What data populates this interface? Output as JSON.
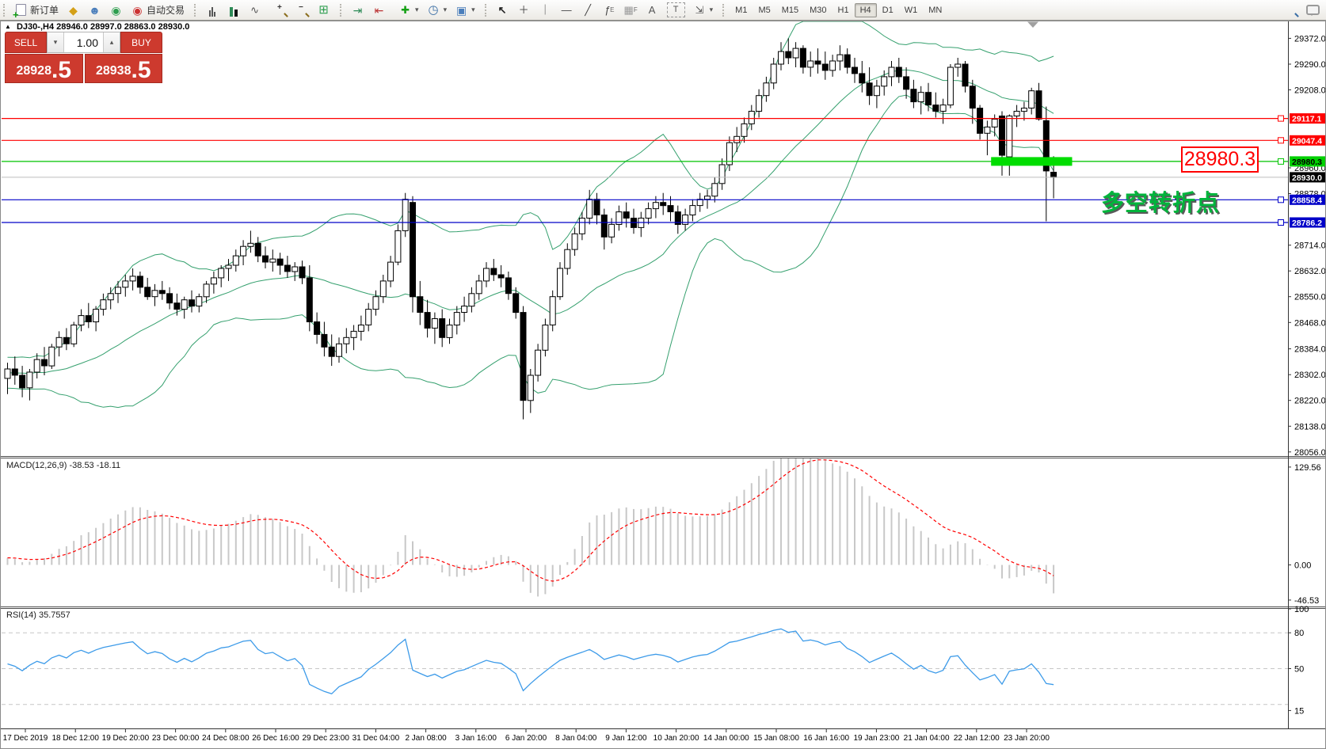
{
  "toolbar": {
    "new_order": {
      "label": "新订单"
    },
    "autotrading": {
      "label": "自动交易"
    },
    "timeframes": [
      "M1",
      "M5",
      "M15",
      "M30",
      "H1",
      "H4",
      "D1",
      "W1",
      "MN"
    ],
    "active_timeframe": "H4",
    "glyphs": {
      "person": "☻",
      "diamond": "◆",
      "signal": "◉",
      "auto": "◉",
      "line_chart": "∿",
      "tile": "⊞",
      "indicator": "✚",
      "clock": "◷",
      "template": "▣",
      "autoscroll": "⇥",
      "shift": "⇤",
      "cursor": "↖",
      "crosshair": "＋",
      "vline": "｜",
      "hline": "—",
      "tline": "╱",
      "fibo": "ƒ",
      "fibo_sub": "E",
      "channel": "▦",
      "channel_sub": "F",
      "text": "A",
      "textlabel": "T",
      "arrows": "⇲",
      "caret": "▾",
      "zoom_in": "+",
      "zoom_out": "−"
    }
  },
  "symbol_bar": {
    "collapse_icon": "▲",
    "symbol": "DJ30-,H4",
    "open": "28946.0",
    "high": "28997.0",
    "low": "28863.0",
    "close": "28930.0"
  },
  "trade_panel": {
    "sell_label": "SELL",
    "buy_label": "BUY",
    "volume": "1.00",
    "spinner_down": "▾",
    "spinner_up": "▴",
    "sell_price_main": "28928",
    "sell_price_frac": ".5",
    "buy_price_main": "28938",
    "buy_price_frac": ".5"
  },
  "chart_data": [
    {
      "type": "candlestick",
      "title": "DJ30-,H4",
      "timeframe": "H4",
      "ohlc_current": {
        "open": 28946.0,
        "high": 28997.0,
        "low": 28863.0,
        "close": 28930.0
      },
      "ylim": [
        28043,
        29426
      ],
      "y_ticks": [
        "29372.0",
        "29290.0",
        "29208.0",
        "28960.0",
        "28878.0",
        "28714.0",
        "28632.0",
        "28550.0",
        "28468.0",
        "28384.0",
        "28302.0",
        "28220.0",
        "28138.0",
        "28056.0"
      ],
      "bollinger": {
        "period": 20,
        "deviation": 2,
        "color": "#35a06e"
      },
      "candle_up_fill": "#ffffff",
      "candle_down_fill": "#000000",
      "candle_stroke": "#000000",
      "levels": [
        {
          "price": 29117.1,
          "label": "29117.1",
          "color": "#ff0000",
          "badge_bg": "#ff0000",
          "badge_fg": "#ffffff"
        },
        {
          "price": 29047.4,
          "label": "29047.4",
          "color": "#ff0000",
          "badge_bg": "#ff0000",
          "badge_fg": "#ffffff"
        },
        {
          "price": 28980.3,
          "label": "28980.3",
          "color": "#00c400",
          "badge_bg": "#00d000",
          "badge_fg": "#000000"
        },
        {
          "price": 28858.4,
          "label": "28858.4",
          "color": "#0000c8",
          "badge_bg": "#0000c8",
          "badge_fg": "#ffffff"
        },
        {
          "price": 28786.2,
          "label": "28786.2",
          "color": "#0000c8",
          "badge_bg": "#0000c8",
          "badge_fg": "#ffffff"
        }
      ],
      "current_price": {
        "price": 28930.0,
        "label": "28930.0",
        "line_color": "#bdbdbd",
        "badge_bg": "#000000",
        "badge_fg": "#ffffff"
      },
      "highlight_zone": {
        "price": 28980.3,
        "from_candle": 134,
        "span_candles": 11,
        "color": "#00dd00"
      },
      "big_price_label": {
        "text": "28980.3",
        "color": "#ff0000"
      },
      "annotation": {
        "text": "多空转折点",
        "color": "#00b43c"
      },
      "candles": [
        [
          28290,
          28340,
          28240,
          28320
        ],
        [
          28320,
          28360,
          28270,
          28300
        ],
        [
          28300,
          28330,
          28230,
          28260
        ],
        [
          28260,
          28320,
          28220,
          28310
        ],
        [
          28310,
          28370,
          28290,
          28350
        ],
        [
          28350,
          28390,
          28300,
          28330
        ],
        [
          28330,
          28400,
          28320,
          28390
        ],
        [
          28390,
          28440,
          28360,
          28420
        ],
        [
          28420,
          28450,
          28380,
          28400
        ],
        [
          28400,
          28470,
          28390,
          28460
        ],
        [
          28460,
          28510,
          28440,
          28490
        ],
        [
          28490,
          28530,
          28450,
          28470
        ],
        [
          28470,
          28520,
          28440,
          28510
        ],
        [
          28510,
          28560,
          28490,
          28540
        ],
        [
          28540,
          28580,
          28510,
          28560
        ],
        [
          28560,
          28600,
          28530,
          28580
        ],
        [
          28580,
          28620,
          28550,
          28600
        ],
        [
          28600,
          28640,
          28570,
          28615
        ],
        [
          28615,
          28630,
          28560,
          28580
        ],
        [
          28580,
          28610,
          28540,
          28550
        ],
        [
          28550,
          28590,
          28520,
          28570
        ],
        [
          28570,
          28600,
          28540,
          28560
        ],
        [
          28560,
          28580,
          28510,
          28530
        ],
        [
          28530,
          28560,
          28490,
          28510
        ],
        [
          28510,
          28550,
          28480,
          28540
        ],
        [
          28540,
          28570,
          28500,
          28520
        ],
        [
          28520,
          28560,
          28500,
          28550
        ],
        [
          28550,
          28600,
          28530,
          28590
        ],
        [
          28590,
          28630,
          28560,
          28610
        ],
        [
          28610,
          28650,
          28580,
          28640
        ],
        [
          28640,
          28670,
          28600,
          28650
        ],
        [
          28650,
          28700,
          28630,
          28680
        ],
        [
          28680,
          28730,
          28650,
          28710
        ],
        [
          28710,
          28760,
          28690,
          28720
        ],
        [
          28720,
          28740,
          28660,
          28680
        ],
        [
          28680,
          28710,
          28640,
          28660
        ],
        [
          28660,
          28700,
          28630,
          28670
        ],
        [
          28670,
          28690,
          28620,
          28650
        ],
        [
          28650,
          28680,
          28610,
          28630
        ],
        [
          28630,
          28660,
          28600,
          28645
        ],
        [
          28645,
          28665,
          28590,
          28610
        ],
        [
          28610,
          28650,
          28440,
          28470
        ],
        [
          28470,
          28500,
          28400,
          28430
        ],
        [
          28430,
          28470,
          28360,
          28390
        ],
        [
          28390,
          28430,
          28330,
          28360
        ],
        [
          28360,
          28420,
          28340,
          28400
        ],
        [
          28400,
          28450,
          28370,
          28420
        ],
        [
          28420,
          28460,
          28380,
          28440
        ],
        [
          28440,
          28490,
          28410,
          28460
        ],
        [
          28460,
          28530,
          28440,
          28510
        ],
        [
          28510,
          28570,
          28490,
          28550
        ],
        [
          28550,
          28620,
          28530,
          28600
        ],
        [
          28600,
          28680,
          28580,
          28660
        ],
        [
          28660,
          28780,
          28650,
          28760
        ],
        [
          28760,
          28880,
          28740,
          28860
        ],
        [
          28850,
          28870,
          28500,
          28550
        ],
        [
          28550,
          28600,
          28460,
          28500
        ],
        [
          28500,
          28540,
          28420,
          28450
        ],
        [
          28450,
          28500,
          28400,
          28480
        ],
        [
          28480,
          28510,
          28390,
          28420
        ],
        [
          28420,
          28480,
          28400,
          28460
        ],
        [
          28460,
          28520,
          28430,
          28500
        ],
        [
          28500,
          28550,
          28470,
          28520
        ],
        [
          28520,
          28580,
          28500,
          28560
        ],
        [
          28560,
          28620,
          28540,
          28600
        ],
        [
          28600,
          28660,
          28580,
          28640
        ],
        [
          28640,
          28670,
          28600,
          28620
        ],
        [
          28620,
          28650,
          28580,
          28610
        ],
        [
          28610,
          28630,
          28540,
          28560
        ],
        [
          28560,
          28580,
          28480,
          28500
        ],
        [
          28500,
          28520,
          28160,
          28220
        ],
        [
          28220,
          28320,
          28180,
          28300
        ],
        [
          28300,
          28400,
          28280,
          28380
        ],
        [
          28380,
          28480,
          28360,
          28460
        ],
        [
          28460,
          28570,
          28440,
          28550
        ],
        [
          28550,
          28660,
          28540,
          28640
        ],
        [
          28640,
          28720,
          28620,
          28700
        ],
        [
          28700,
          28770,
          28680,
          28750
        ],
        [
          28750,
          28820,
          28730,
          28800
        ],
        [
          28800,
          28890,
          28780,
          28860
        ],
        [
          28860,
          28880,
          28780,
          28810
        ],
        [
          28810,
          28830,
          28700,
          28740
        ],
        [
          28740,
          28800,
          28720,
          28780
        ],
        [
          28780,
          28840,
          28760,
          28820
        ],
        [
          28820,
          28850,
          28770,
          28800
        ],
        [
          28800,
          28830,
          28750,
          28770
        ],
        [
          28770,
          28820,
          28740,
          28800
        ],
        [
          28800,
          28850,
          28780,
          28830
        ],
        [
          28830,
          28870,
          28800,
          28850
        ],
        [
          28850,
          28880,
          28810,
          28840
        ],
        [
          28840,
          28870,
          28790,
          28820
        ],
        [
          28820,
          28840,
          28750,
          28780
        ],
        [
          28780,
          28830,
          28760,
          28810
        ],
        [
          28810,
          28860,
          28790,
          28840
        ],
        [
          28840,
          28880,
          28820,
          28860
        ],
        [
          28860,
          28890,
          28830,
          28870
        ],
        [
          28870,
          28930,
          28850,
          28910
        ],
        [
          28910,
          28990,
          28890,
          28970
        ],
        [
          28970,
          29060,
          28950,
          29040
        ],
        [
          29040,
          29090,
          29010,
          29060
        ],
        [
          29060,
          29120,
          29040,
          29100
        ],
        [
          29100,
          29160,
          29080,
          29140
        ],
        [
          29140,
          29210,
          29120,
          29190
        ],
        [
          29190,
          29250,
          29170,
          29230
        ],
        [
          29230,
          29310,
          29210,
          29290
        ],
        [
          29290,
          29360,
          29270,
          29330
        ],
        [
          29330,
          29372,
          29290,
          29310
        ],
        [
          29310,
          29360,
          29280,
          29340
        ],
        [
          29340,
          29350,
          29260,
          29280
        ],
        [
          29280,
          29330,
          29250,
          29300
        ],
        [
          29300,
          29340,
          29260,
          29290
        ],
        [
          29290,
          29330,
          29240,
          29270
        ],
        [
          29270,
          29320,
          29250,
          29300
        ],
        [
          29300,
          29350,
          29270,
          29320
        ],
        [
          29320,
          29340,
          29260,
          29280
        ],
        [
          29280,
          29310,
          29230,
          29260
        ],
        [
          29260,
          29300,
          29200,
          29230
        ],
        [
          29230,
          29280,
          29160,
          29190
        ],
        [
          29190,
          29240,
          29150,
          29220
        ],
        [
          29220,
          29270,
          29190,
          29250
        ],
        [
          29250,
          29300,
          29220,
          29280
        ],
        [
          29280,
          29310,
          29230,
          29250
        ],
        [
          29250,
          29280,
          29180,
          29210
        ],
        [
          29210,
          29240,
          29150,
          29170
        ],
        [
          29170,
          29220,
          29130,
          29200
        ],
        [
          29200,
          29230,
          29140,
          29160
        ],
        [
          29160,
          29200,
          29120,
          29140
        ],
        [
          29140,
          29180,
          29100,
          29160
        ],
        [
          29160,
          29290,
          29150,
          29280
        ],
        [
          29280,
          29310,
          29250,
          29290
        ],
        [
          29290,
          29300,
          29200,
          29220
        ],
        [
          29220,
          29240,
          29100,
          29150
        ],
        [
          29150,
          29160,
          29050,
          29070
        ],
        [
          29070,
          29110,
          29000,
          29090
        ],
        [
          29090,
          29130,
          29060,
          29115
        ],
        [
          29125,
          29140,
          28935,
          29000
        ],
        [
          28995,
          29130,
          28935,
          29125
        ],
        [
          29125,
          29160,
          29090,
          29140
        ],
        [
          29140,
          29170,
          29110,
          29150
        ],
        [
          29150,
          29215,
          29130,
          29205
        ],
        [
          29205,
          29230,
          29110,
          29115
        ],
        [
          29110,
          29155,
          28790,
          28950
        ],
        [
          28946,
          28997,
          28863,
          28930
        ]
      ]
    },
    {
      "type": "macd",
      "label": "MACD(12,26,9)",
      "value_main": "-38.53",
      "value_signal": "-18.11",
      "params": {
        "fast": 12,
        "slow": 26,
        "signal": 9
      },
      "ylim": [
        -55,
        141
      ],
      "y_ticks": [
        "129.56",
        "0.00",
        "-46.53"
      ],
      "histogram_color": "#c8c8c8",
      "signal_color": "#ff0000"
    },
    {
      "type": "rsi",
      "label": "RSI(14)",
      "value": "35.7557",
      "period": 14,
      "ylim": [
        0,
        100
      ],
      "y_ticks": [
        "100",
        "80",
        "50",
        "15"
      ],
      "levels": [
        80,
        50,
        20
      ],
      "line_color": "#3d9be9",
      "level_color": "#c6c6c6"
    }
  ],
  "time_axis": {
    "labels": [
      "17 Dec 2019",
      "18 Dec 12:00",
      "19 Dec 20:00",
      "23 Dec 00:00",
      "24 Dec 08:00",
      "26 Dec 16:00",
      "29 Dec 23:00",
      "31 Dec 04:00",
      "2 Jan 08:00",
      "3 Jan 16:00",
      "6 Jan 20:00",
      "8 Jan 04:00",
      "9 Jan 12:00",
      "10 Jan 20:00",
      "14 Jan 00:00",
      "15 Jan 08:00",
      "16 Jan 16:00",
      "19 Jan 23:00",
      "21 Jan 04:00",
      "22 Jan 12:00",
      "23 Jan 20:00"
    ]
  }
}
